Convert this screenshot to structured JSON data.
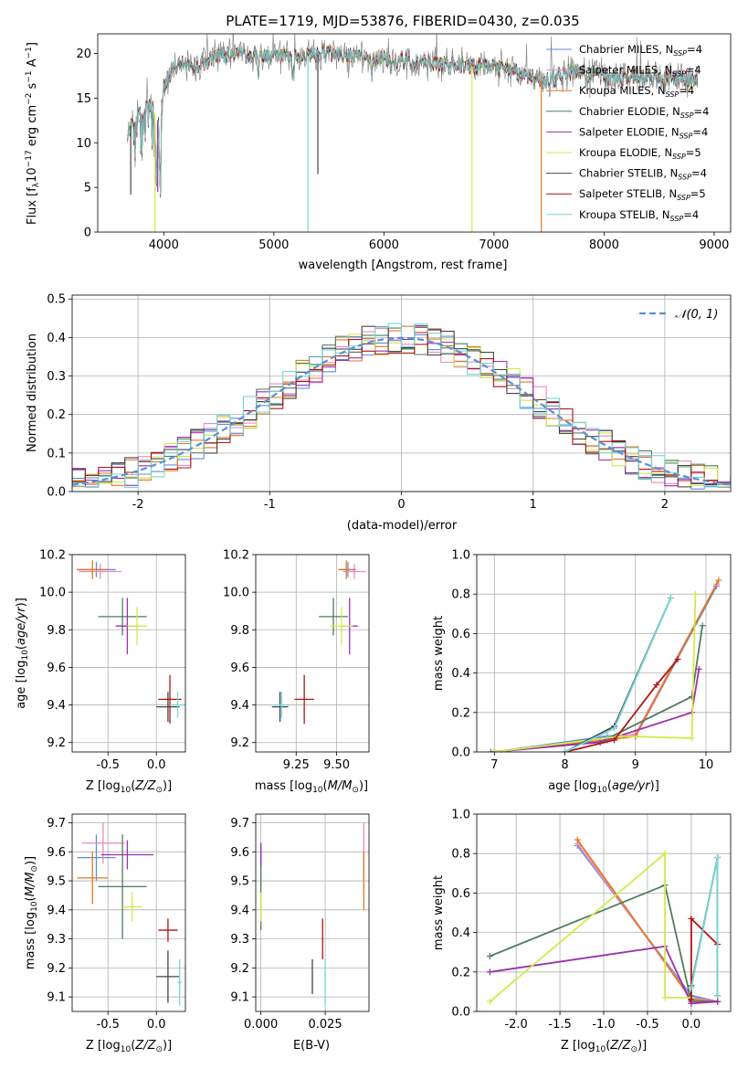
{
  "figure_title": "PLATE=1719, MJD=53876, FIBERID=0430, z=0.035",
  "series_legend": [
    {
      "name": "Chabrier MILES, N_SSP=4",
      "color": "#5b8fd6"
    },
    {
      "name": "Salpeter MILES, N_SSP=4",
      "color": "#e888c8"
    },
    {
      "name": "Kroupa MILES, N_SSP=4",
      "color": "#e27922"
    },
    {
      "name": "Chabrier ELODIE, N_SSP=4",
      "color": "#4f7d5e"
    },
    {
      "name": "Salpeter ELODIE, N_SSP=4",
      "color": "#9c2fb0"
    },
    {
      "name": "Kroupa ELODIE, N_SSP=5",
      "color": "#d4e84a"
    },
    {
      "name": "Chabrier STELIB, N_SSP=4",
      "color": "#444444"
    },
    {
      "name": "Salpeter STELIB, N_SSP=5",
      "color": "#b01515"
    },
    {
      "name": "Kroupa STELIB, N_SSP=4",
      "color": "#76d6d6"
    }
  ],
  "chart_data": [
    {
      "id": "spectrum",
      "type": "line",
      "xlabel": "wavelength [Angstrom, rest frame]",
      "ylabel": "Flux [f_λ 10^-17 erg cm^-2 s^-1 A^-1]",
      "xlim": [
        3400,
        9150
      ],
      "ylim": [
        0,
        22.2
      ],
      "xticks": [
        4000,
        5000,
        6000,
        7000,
        8000,
        9000
      ],
      "yticks": [
        0,
        5,
        10,
        15,
        20
      ],
      "data_wavelength_range": [
        3670,
        8850
      ],
      "grid": false,
      "legend_position": "upper right",
      "continuum": {
        "x": [
          3670,
          3720,
          3800,
          3850,
          3900,
          3960,
          4000,
          4050,
          4100,
          4200,
          4300,
          4400,
          4500,
          4700,
          4900,
          5100,
          5300,
          5500,
          5700,
          5900,
          6100,
          6300,
          6500,
          6700,
          6900,
          7100,
          7300,
          7450,
          7600,
          7700,
          7900,
          8100,
          8300,
          8500,
          8700,
          8850
        ],
        "y": [
          11,
          12.5,
          13.5,
          14.5,
          14.0,
          12.0,
          16.5,
          17.5,
          18.5,
          19.0,
          18.5,
          19.2,
          19.8,
          20.0,
          19.8,
          19.5,
          19.7,
          20.0,
          19.7,
          19.5,
          19.2,
          19.0,
          18.8,
          18.7,
          18.5,
          18.2,
          17.5,
          16.8,
          17.5,
          18.0,
          17.6,
          17.2,
          17.5,
          17.0,
          17.2,
          17.0
        ]
      },
      "spikes": [
        {
          "x": 3920,
          "y_min": 0,
          "color": "#d4e84a"
        },
        {
          "x": 5310,
          "y_min": 0,
          "color": "#76d6d6"
        },
        {
          "x": 6800,
          "y_min": 0,
          "color": "#d4e84a"
        },
        {
          "x": 7430,
          "y_min": 0,
          "color": "#e27922"
        },
        {
          "x": 3700,
          "y_min": 4.2,
          "color": "#444444"
        },
        {
          "x": 3945,
          "y_min": 4.5,
          "color": "#9c2fb0"
        },
        {
          "x": 5400,
          "y_min": 6.5,
          "color": "#444444"
        }
      ]
    },
    {
      "id": "residuals",
      "type": "step",
      "xlabel": "(data-model)/error",
      "ylabel": "Normed distribution",
      "xlim": [
        -2.5,
        2.5
      ],
      "ylim": [
        0,
        0.51
      ],
      "xticks": [
        -2,
        -1,
        0,
        1,
        2
      ],
      "yticks": [
        0.0,
        0.1,
        0.2,
        0.3,
        0.4,
        0.5
      ],
      "grid": true,
      "legend": [
        "𝒩(0, 1)"
      ],
      "legend_position": "upper right",
      "bin_width": 0.1,
      "reference_curve": {
        "name": "𝒩(0, 1)",
        "mean": 0,
        "sigma": 1,
        "color": "#5b8fd6",
        "dashed": true
      }
    },
    {
      "id": "age_vs_Z",
      "type": "errorbar",
      "xlabel": "Z [log10(Z/Z☉)]",
      "ylabel": "age  [log10(age/yr)]",
      "xlim": [
        -0.87,
        0.3
      ],
      "ylim": [
        9.15,
        10.2
      ],
      "xticks": [
        -0.5,
        0.0
      ],
      "yticks": [
        9.2,
        9.4,
        9.6,
        9.8,
        10.0,
        10.2
      ],
      "grid": true,
      "points": [
        {
          "color": "#5b8fd6",
          "x": -0.62,
          "xerr": 0.2,
          "y": 10.12,
          "yerr": 0.04
        },
        {
          "color": "#e888c8",
          "x": -0.58,
          "xerr": 0.22,
          "y": 10.11,
          "yerr": 0.04
        },
        {
          "color": "#e27922",
          "x": -0.66,
          "xerr": 0.16,
          "y": 10.12,
          "yerr": 0.05
        },
        {
          "color": "#4f7d5e",
          "x": -0.35,
          "xerr": 0.25,
          "y": 9.87,
          "yerr": 0.1
        },
        {
          "color": "#9c2fb0",
          "x": -0.3,
          "xerr": 0.12,
          "y": 9.82,
          "yerr": 0.15
        },
        {
          "color": "#d4e84a",
          "x": -0.2,
          "xerr": 0.1,
          "y": 9.82,
          "yerr": 0.1
        },
        {
          "color": "#444444",
          "x": 0.12,
          "xerr": 0.12,
          "y": 9.39,
          "yerr": 0.08
        },
        {
          "color": "#b01515",
          "x": 0.14,
          "xerr": 0.12,
          "y": 9.43,
          "yerr": 0.13
        },
        {
          "color": "#76d6d6",
          "x": 0.22,
          "xerr": 0.08,
          "y": 9.4,
          "yerr": 0.07
        }
      ]
    },
    {
      "id": "age_vs_mass",
      "type": "errorbar",
      "xlabel": "mass [log10(M/M☉)]",
      "ylabel": "",
      "xlim": [
        9.0,
        9.7
      ],
      "ylim": [
        9.15,
        10.2
      ],
      "xticks": [
        9.25,
        9.5
      ],
      "yticks": [
        9.2,
        9.4,
        9.6,
        9.8,
        10.0,
        10.2
      ],
      "grid": true,
      "points": [
        {
          "color": "#5b8fd6",
          "x": 9.57,
          "xerr": 0.05,
          "y": 10.12,
          "yerr": 0.04
        },
        {
          "color": "#e888c8",
          "x": 9.61,
          "xerr": 0.07,
          "y": 10.11,
          "yerr": 0.04
        },
        {
          "color": "#e27922",
          "x": 9.56,
          "xerr": 0.05,
          "y": 10.12,
          "yerr": 0.05
        },
        {
          "color": "#4f7d5e",
          "x": 9.48,
          "xerr": 0.09,
          "y": 9.87,
          "yerr": 0.1
        },
        {
          "color": "#9c2fb0",
          "x": 9.58,
          "xerr": 0.05,
          "y": 9.82,
          "yerr": 0.15
        },
        {
          "color": "#d4e84a",
          "x": 9.53,
          "xerr": 0.07,
          "y": 9.82,
          "yerr": 0.1
        },
        {
          "color": "#444444",
          "x": 9.15,
          "xerr": 0.05,
          "y": 9.39,
          "yerr": 0.08
        },
        {
          "color": "#b01515",
          "x": 9.3,
          "xerr": 0.06,
          "y": 9.43,
          "yerr": 0.13
        },
        {
          "color": "#76d6d6",
          "x": 9.16,
          "xerr": 0.05,
          "y": 9.4,
          "yerr": 0.07
        }
      ]
    },
    {
      "id": "massweight_vs_age",
      "type": "line",
      "xlabel": "age  [log10(age/yr)]",
      "ylabel": "mass weight",
      "xlim": [
        6.75,
        10.35
      ],
      "ylim": [
        0,
        1.0
      ],
      "xticks": [
        7,
        8,
        9,
        10
      ],
      "yticks": [
        0.0,
        0.2,
        0.4,
        0.6,
        0.8,
        1.0
      ],
      "grid": true,
      "series": [
        {
          "color": "#5b8fd6",
          "x": [
            7.0,
            8.6,
            9.0,
            10.15
          ],
          "y": [
            0.0,
            0.08,
            0.08,
            0.84
          ]
        },
        {
          "color": "#e888c8",
          "x": [
            7.0,
            8.6,
            9.0,
            10.15
          ],
          "y": [
            0.0,
            0.07,
            0.09,
            0.85
          ]
        },
        {
          "color": "#e27922",
          "x": [
            7.0,
            8.6,
            9.0,
            10.18
          ],
          "y": [
            0.0,
            0.06,
            0.08,
            0.87
          ]
        },
        {
          "color": "#4f7d5e",
          "x": [
            6.95,
            8.5,
            9.8,
            9.95
          ],
          "y": [
            0.0,
            0.05,
            0.28,
            0.64
          ]
        },
        {
          "color": "#9c2fb0",
          "x": [
            7.0,
            8.5,
            9.8,
            9.9
          ],
          "y": [
            0.0,
            0.05,
            0.2,
            0.42
          ]
        },
        {
          "color": "#d4e84a",
          "x": [
            7.0,
            8.8,
            9.8,
            9.85
          ],
          "y": [
            0.0,
            0.08,
            0.07,
            0.8
          ]
        },
        {
          "color": "#444444",
          "x": [
            8.0,
            8.7,
            9.5
          ],
          "y": [
            0.0,
            0.13,
            0.78
          ]
        },
        {
          "color": "#b01515",
          "x": [
            8.0,
            8.7,
            9.3,
            9.6
          ],
          "y": [
            0.0,
            0.06,
            0.34,
            0.47
          ]
        },
        {
          "color": "#76d6d6",
          "x": [
            8.0,
            8.7,
            9.5
          ],
          "y": [
            0.0,
            0.12,
            0.78
          ]
        }
      ]
    },
    {
      "id": "mass_vs_Z",
      "type": "errorbar",
      "xlabel": "Z [log10(Z/Z☉)]",
      "ylabel": "mass [log10(M/M☉)]",
      "xlim": [
        -0.87,
        0.3
      ],
      "ylim": [
        9.05,
        9.73
      ],
      "xticks": [
        -0.5,
        0.0
      ],
      "yticks": [
        9.1,
        9.2,
        9.3,
        9.4,
        9.5,
        9.6,
        9.7
      ],
      "grid": true,
      "points": [
        {
          "color": "#5b8fd6",
          "x": -0.62,
          "xerr": 0.2,
          "y": 9.58,
          "yerr": 0.08
        },
        {
          "color": "#e888c8",
          "x": -0.55,
          "xerr": 0.22,
          "y": 9.63,
          "yerr": 0.07
        },
        {
          "color": "#e27922",
          "x": -0.66,
          "xerr": 0.16,
          "y": 9.51,
          "yerr": 0.09
        },
        {
          "color": "#4f7d5e",
          "x": -0.35,
          "xerr": 0.25,
          "y": 9.48,
          "yerr": 0.18
        },
        {
          "color": "#9c2fb0",
          "x": -0.3,
          "xerr": 0.27,
          "y": 9.59,
          "yerr": 0.05
        },
        {
          "color": "#d4e84a",
          "x": -0.25,
          "xerr": 0.1,
          "y": 9.41,
          "yerr": 0.05
        },
        {
          "color": "#444444",
          "x": 0.12,
          "xerr": 0.12,
          "y": 9.17,
          "yerr": 0.09
        },
        {
          "color": "#b01515",
          "x": 0.12,
          "xerr": 0.1,
          "y": 9.33,
          "yerr": 0.04
        },
        {
          "color": "#76d6d6",
          "x": 0.24,
          "xerr": 0.02,
          "y": 9.15,
          "yerr": 0.08
        }
      ]
    },
    {
      "id": "mass_vs_EBV",
      "type": "errorbar",
      "xlabel": "E(B-V)",
      "ylabel": "",
      "xlim": [
        -0.002,
        0.042
      ],
      "ylim": [
        9.05,
        9.73
      ],
      "xticks": [
        0.0,
        0.025
      ],
      "yticks": [
        9.1,
        9.2,
        9.3,
        9.4,
        9.5,
        9.6,
        9.7
      ],
      "grid": true,
      "points": [
        {
          "color": "#5b8fd6",
          "x": 0.0,
          "xerr": 0,
          "y": 9.55,
          "yerr": 0.07
        },
        {
          "color": "#e888c8",
          "x": 0.04,
          "xerr": 0,
          "y": 9.6,
          "yerr": 0.1
        },
        {
          "color": "#e27922",
          "x": 0.04,
          "xerr": 0,
          "y": 9.5,
          "yerr": 0.1
        },
        {
          "color": "#4f7d5e",
          "x": 0.0,
          "xerr": 0,
          "y": 9.48,
          "yerr": 0.15
        },
        {
          "color": "#9c2fb0",
          "x": 0.0,
          "xerr": 0,
          "y": 9.59,
          "yerr": 0.04
        },
        {
          "color": "#d4e84a",
          "x": 0.0,
          "xerr": 0,
          "y": 9.41,
          "yerr": 0.05
        },
        {
          "color": "#444444",
          "x": 0.02,
          "xerr": 0,
          "y": 9.17,
          "yerr": 0.06
        },
        {
          "color": "#b01515",
          "x": 0.024,
          "xerr": 0,
          "y": 9.3,
          "yerr": 0.07
        },
        {
          "color": "#76d6d6",
          "x": 0.025,
          "xerr": 0,
          "y": 9.15,
          "yerr": 0.08
        }
      ]
    },
    {
      "id": "massweight_vs_Z",
      "type": "line",
      "xlabel": "Z [log10(Z/Z☉)]",
      "ylabel": "mass weight",
      "xlim": [
        -2.45,
        0.45
      ],
      "ylim": [
        0,
        1.0
      ],
      "xticks": [
        -2.0,
        -1.5,
        -1.0,
        -0.5,
        0.0
      ],
      "yticks": [
        0.0,
        0.2,
        0.4,
        0.6,
        0.8,
        1.0
      ],
      "grid": true,
      "series": [
        {
          "color": "#5b8fd6",
          "x": [
            -1.3,
            0.0,
            0.3
          ],
          "y": [
            0.84,
            0.08,
            0.05
          ]
        },
        {
          "color": "#e888c8",
          "x": [
            -1.3,
            0.0,
            0.3
          ],
          "y": [
            0.85,
            0.07,
            0.05
          ]
        },
        {
          "color": "#e27922",
          "x": [
            -1.3,
            0.0,
            0.3
          ],
          "y": [
            0.87,
            0.06,
            0.05
          ]
        },
        {
          "color": "#4f7d5e",
          "x": [
            -2.3,
            -0.3,
            0.0,
            0.3
          ],
          "y": [
            0.28,
            0.64,
            0.05,
            0.05
          ]
        },
        {
          "color": "#9c2fb0",
          "x": [
            -2.3,
            -0.3,
            0.0,
            0.3
          ],
          "y": [
            0.2,
            0.33,
            0.04,
            0.05
          ]
        },
        {
          "color": "#d4e84a",
          "x": [
            -2.3,
            -0.3,
            -0.3,
            0.0
          ],
          "y": [
            0.05,
            0.8,
            0.07,
            0.07
          ]
        },
        {
          "color": "#444444",
          "x": [
            0.0,
            0.3,
            0.3
          ],
          "y": [
            0.13,
            0.78,
            0.08
          ]
        },
        {
          "color": "#b01515",
          "x": [
            0.0,
            0.0,
            0.3
          ],
          "y": [
            0.06,
            0.47,
            0.34
          ]
        },
        {
          "color": "#76d6d6",
          "x": [
            0.0,
            0.3,
            0.3
          ],
          "y": [
            0.12,
            0.78,
            0.08
          ]
        }
      ]
    }
  ]
}
